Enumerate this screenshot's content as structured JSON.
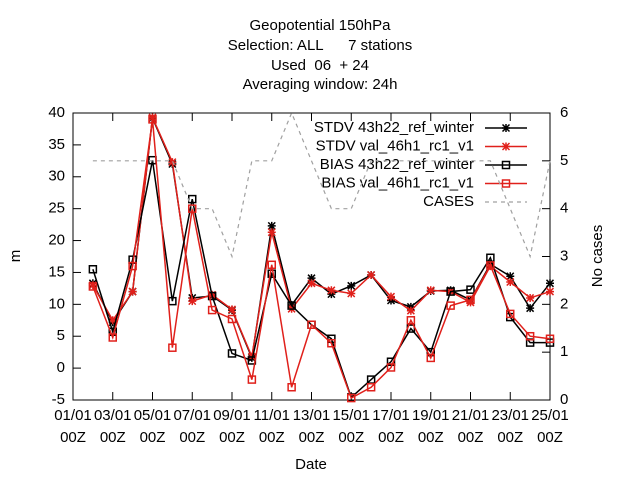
{
  "chart_data": {
    "type": "line",
    "title": "Geopotential 150hPa",
    "subtitle": [
      "Selection: ALL      7 stations",
      "Used  06  + 24",
      "Averaging window: 24h"
    ],
    "xlabel": "Date",
    "ylabel": "m",
    "y2label": "No cases",
    "x": [
      2,
      3,
      4,
      5,
      6,
      7,
      8,
      9,
      10,
      11,
      12,
      13,
      14,
      15,
      16,
      17,
      18,
      19,
      20,
      21,
      22,
      23,
      24,
      25
    ],
    "xlim": [
      1,
      25
    ],
    "xticks": [
      {
        "value": 1,
        "label": "01/01 00Z"
      },
      {
        "value": 3,
        "label": "03/01 00Z"
      },
      {
        "value": 5,
        "label": "05/01 00Z"
      },
      {
        "value": 7,
        "label": "07/01 00Z"
      },
      {
        "value": 9,
        "label": "09/01 00Z"
      },
      {
        "value": 11,
        "label": "11/01 00Z"
      },
      {
        "value": 13,
        "label": "13/01 00Z"
      },
      {
        "value": 15,
        "label": "15/01 00Z"
      },
      {
        "value": 17,
        "label": "17/01 00Z"
      },
      {
        "value": 19,
        "label": "19/01 00Z"
      },
      {
        "value": 21,
        "label": "21/01 00Z"
      },
      {
        "value": 23,
        "label": "23/01 00Z"
      },
      {
        "value": 25,
        "label": "25/01 00Z"
      }
    ],
    "ylim": [
      -5,
      40
    ],
    "yticks": [
      -5,
      0,
      5,
      10,
      15,
      20,
      25,
      30,
      35,
      40
    ],
    "y2lim": [
      0,
      6
    ],
    "y2ticks": [
      0,
      1,
      2,
      3,
      4,
      5,
      6
    ],
    "legend": "top-right",
    "series": [
      {
        "name": "STDV 43h22_ref_winter",
        "color": "#000000",
        "marker": "star",
        "values": [
          13.3,
          7.2,
          12,
          39.2,
          32,
          11,
          11.3,
          9.1,
          1.6,
          22.3,
          9.9,
          14.1,
          11.6,
          12.9,
          14.6,
          10.6,
          9.6,
          12.1,
          12.2,
          10.7,
          16.3,
          14.4,
          9.4,
          13.3
        ]
      },
      {
        "name": "STDV val_46h1_rc1_v1",
        "color": "#e0201b",
        "marker": "star",
        "values": [
          13,
          7.5,
          12,
          39.3,
          32.3,
          10.5,
          11.5,
          9.2,
          1.8,
          21.3,
          9.3,
          13.3,
          12.2,
          11.7,
          14.6,
          11.2,
          9,
          12.2,
          12,
          10.3,
          16,
          13.5,
          11,
          12
        ]
      },
      {
        "name": "BIAS 43h22_ref_winter",
        "color": "#000000",
        "marker": "square",
        "values": [
          15.5,
          5.7,
          17,
          32.6,
          10.5,
          26.5,
          11.3,
          2.3,
          1.2,
          14.8,
          9.8,
          6.8,
          4.6,
          -4.6,
          -1.8,
          1,
          6.2,
          2.5,
          12,
          12.3,
          17.3,
          8,
          4,
          4
        ]
      },
      {
        "name": "BIAS val_46h1_rc1_v1",
        "color": "#e0201b",
        "marker": "square",
        "values": [
          12.8,
          4.8,
          16,
          39,
          3.2,
          25,
          9.1,
          7.7,
          -1.8,
          16.2,
          -3,
          6.8,
          3.9,
          -4.7,
          -3,
          0.1,
          7.5,
          1.6,
          9.8,
          10.7,
          16.1,
          8.5,
          5,
          4.6
        ]
      },
      {
        "name": "CASES",
        "color": "#a0a0a0",
        "marker": "none",
        "dashed": true,
        "axis": "y2",
        "values": [
          5,
          5,
          5,
          5,
          5,
          4,
          4,
          3,
          5,
          5,
          6,
          5,
          4,
          4,
          5,
          5,
          5,
          5,
          5,
          5,
          5,
          4,
          3,
          5
        ]
      }
    ]
  }
}
